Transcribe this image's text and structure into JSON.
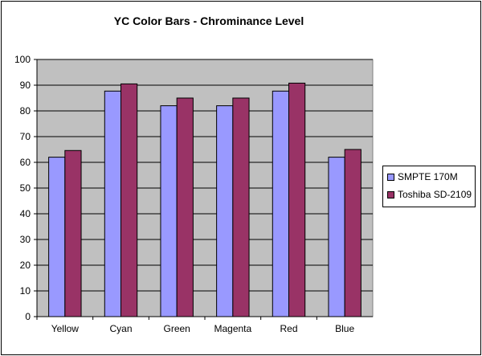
{
  "chart_data": {
    "type": "bar",
    "title": "YC Color Bars - Chrominance Level",
    "xlabel": "",
    "ylabel": "",
    "ylim": [
      0,
      100
    ],
    "yticks": [
      "0",
      "10",
      "20",
      "30",
      "40",
      "50",
      "60",
      "70",
      "80",
      "90",
      "100"
    ],
    "grid": true,
    "legend_position": "right",
    "categories": [
      "Yellow",
      "Cyan",
      "Green",
      "Magenta",
      "Red",
      "Blue"
    ],
    "series": [
      {
        "name": "SMPTE 170M",
        "color": "#9999FF",
        "values": [
          62,
          87.7,
          82,
          82,
          87.7,
          62
        ]
      },
      {
        "name": "Toshiba SD-2109",
        "color": "#993366",
        "values": [
          64.6,
          90.5,
          85,
          85,
          90.8,
          65
        ]
      }
    ],
    "plot_bg": "#C0C0C0"
  }
}
